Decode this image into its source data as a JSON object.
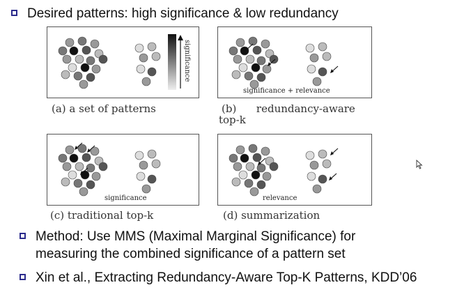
{
  "heading": "Desired patterns: high significance & low redundancy",
  "panels": {
    "a": {
      "caption": "(a) a set of patterns",
      "axis_label": "significance"
    },
    "b": {
      "caption_line1": "(b)      redundancy-aware",
      "caption_line2": "top-k",
      "inner_label": "significance + relevance"
    },
    "c": {
      "caption": "(c) traditional top-k",
      "inner_label": "significance"
    },
    "d": {
      "caption": "(d) summarization",
      "inner_label": "relevance"
    }
  },
  "bullets": [
    {
      "line1": "Method:  Use MMS (Maximal Marginal Significance) for",
      "line2": "measuring the combined significance of a pattern set"
    },
    {
      "line1": "Xin et al., Extracting Redundancy-Aware Top-K Patterns, KDD’06"
    }
  ],
  "colors": {
    "bullet_border": "#2b2b8c",
    "panel_border": "#555555"
  },
  "icons": {
    "bullet": "square-bullet-icon",
    "cursor": "mouse-pointer-icon",
    "pattern": "pattern-circle-icon",
    "arrow": "selection-arrow-icon"
  }
}
